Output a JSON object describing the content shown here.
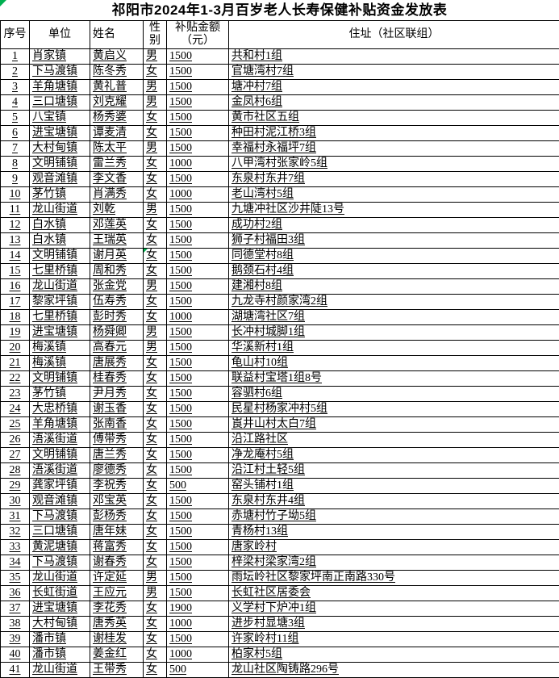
{
  "title": "祁阳市2024年1-3月百岁老人长寿保健补贴资金发放表",
  "colors": {
    "background": "#ffffff",
    "border": "#000000",
    "text": "#000000",
    "marker_green": "#00b050"
  },
  "table": {
    "headers": [
      "序号",
      "单位",
      "姓名",
      "性别",
      "补贴金额（元）",
      "住址（社区联组）"
    ],
    "marker": {
      "row": 14,
      "col": 3
    },
    "rows": [
      [
        "1",
        "肖家镇",
        "黄启义",
        "男",
        "1500",
        "共和村1组"
      ],
      [
        "2",
        "下马渡镇",
        "陈冬秀",
        "女",
        "1500",
        "官塘湾村7组"
      ],
      [
        "3",
        "羊角塘镇",
        "黄礼普",
        "男",
        "1500",
        "塘冲村7组"
      ],
      [
        "4",
        "三口塘镇",
        "刘克耀",
        "男",
        "1500",
        "金凤村6组"
      ],
      [
        "5",
        "八宝镇",
        "杨秀婆",
        "女",
        "1500",
        "黄市社区五组"
      ],
      [
        "6",
        "进宝塘镇",
        "谭麦清",
        "女",
        "1500",
        "种田村泥江桥3组"
      ],
      [
        "7",
        "大村甸镇",
        "陈太平",
        "男",
        "1500",
        "幸福村永福坪7组"
      ],
      [
        "8",
        "文明铺镇",
        "雷兰秀",
        "女",
        "1000",
        "八甲湾村张家岭5组"
      ],
      [
        "9",
        "观音滩镇",
        "李文香",
        "女",
        "1500",
        "东泉村东井7组"
      ],
      [
        "10",
        "茅竹镇",
        "肖满秀",
        "女",
        "1000",
        "老山湾村5组"
      ],
      [
        "11",
        "龙山街道",
        "刘乾",
        "男",
        "1500",
        "九塘冲社区沙井陡13号"
      ],
      [
        "12",
        "白水镇",
        "邓莲英",
        "女",
        "1500",
        "成功村2组"
      ],
      [
        "13",
        "白水镇",
        "王瑞英",
        "女",
        "1500",
        "狮子村福田3组"
      ],
      [
        "14",
        "文明铺镇",
        "谢月英",
        "女",
        "1500",
        "同德堂村8组"
      ],
      [
        "15",
        "七里桥镇",
        "周和秀",
        "女",
        "1500",
        "鹅颈石村4组"
      ],
      [
        "16",
        "龙山街道",
        "张金党",
        "男",
        "1500",
        "建湘村8组"
      ],
      [
        "17",
        "黎家坪镇",
        "伍寿秀",
        "女",
        "1500",
        "九龙寺村颜家湾2组"
      ],
      [
        "18",
        "七里桥镇",
        "彭时秀",
        "女",
        "1000",
        "湖塘湾社区7组"
      ],
      [
        "19",
        "进宝塘镇",
        "杨舜卿",
        "男",
        "1500",
        "长冲村城脚1组"
      ],
      [
        "20",
        "梅溪镇",
        "高春元",
        "男",
        "1500",
        "华溪新村1组"
      ],
      [
        "21",
        "梅溪镇",
        "唐展秀",
        "女",
        "1500",
        "龟山村10组"
      ],
      [
        "22",
        "文明铺镇",
        "桂春秀",
        "女",
        "1500",
        "联益村宝塔1组8号"
      ],
      [
        "23",
        "茅竹镇",
        "尹月秀",
        "女",
        "1500",
        "容驷村6组"
      ],
      [
        "24",
        "大忠桥镇",
        "谢玉香",
        "女",
        "1500",
        "民星村杨家冲村5组"
      ],
      [
        "25",
        "羊角塘镇",
        "张南香",
        "女",
        "1500",
        "崀井山村太白7组"
      ],
      [
        "26",
        "浯溪街道",
        "傅带秀",
        "女",
        "1500",
        "沿江路社区"
      ],
      [
        "27",
        "文明铺镇",
        "唐兰秀",
        "女",
        "1500",
        "净龙庵村5组"
      ],
      [
        "28",
        "浯溪街道",
        "廖德秀",
        "女",
        "1500",
        "沿江村土轻5组"
      ],
      [
        "29",
        "龚家坪镇",
        "李祝秀",
        "女",
        "500",
        "窑头铺村1组"
      ],
      [
        "30",
        "观音滩镇",
        "邓宝英",
        "女",
        "1500",
        "东泉村东井4组"
      ],
      [
        "31",
        "下马渡镇",
        "彭杨秀",
        "女",
        "1500",
        "赤塘村竹子坳5组"
      ],
      [
        "32",
        "三口塘镇",
        "唐年妹",
        "女",
        "1500",
        "青杨村13组"
      ],
      [
        "33",
        "黄泥塘镇",
        "蒋富秀",
        "女",
        "1500",
        "唐家岭村"
      ],
      [
        "34",
        "下马渡镇",
        "谢春秀",
        "女",
        "1500",
        "梓梁村梁家湾2组"
      ],
      [
        "35",
        "龙山街道",
        "许定延",
        "男",
        "1500",
        "雨坛岭社区黎家坪南正南路330号"
      ],
      [
        "36",
        "长虹街道",
        "王应元",
        "男",
        "1500",
        "长虹社区居委会"
      ],
      [
        "37",
        "进宝塘镇",
        "李花秀",
        "女",
        "1900",
        "义学村下炉冲1组"
      ],
      [
        "38",
        "大村甸镇",
        "唐秀英",
        "女",
        "1000",
        "进步村显塘3组"
      ],
      [
        "39",
        "潘市镇",
        "谢桂发",
        "女",
        "1500",
        "许家岭村11组"
      ],
      [
        "40",
        "潘市镇",
        "姜金红",
        "女",
        "1000",
        "柏家村5组"
      ],
      [
        "41",
        "龙山街道",
        "王带秀",
        "女",
        "500",
        "龙山社区陶铸路296号"
      ]
    ]
  }
}
